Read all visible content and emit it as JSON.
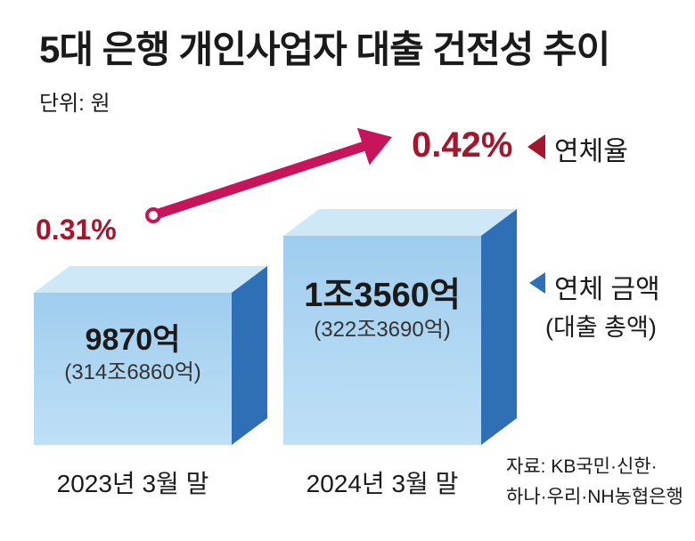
{
  "chart_data": {
    "type": "bar",
    "title": "5대 은행 개인사업자 대출 건전성 추이",
    "unit_label": "단위: 원",
    "categories": [
      "2023년 3월 말",
      "2024년 3월 말"
    ],
    "series": [
      {
        "name": "연체 금액",
        "values": [
          987000000000,
          1356000000000
        ],
        "labels": [
          "9870억",
          "1조3560억"
        ]
      },
      {
        "name": "대출 총액",
        "values": [
          314686000000000,
          322369000000000
        ],
        "labels": [
          "(314조6860억)",
          "(322조3690억)"
        ]
      },
      {
        "name": "연체율",
        "values": [
          0.31,
          0.42
        ],
        "labels": [
          "0.31%",
          "0.42%"
        ]
      }
    ],
    "legend": {
      "rate": "연체율",
      "amount": "연체 금액",
      "total": "(대출 총액)"
    },
    "source_line1": "자료: KB국민·신한·",
    "source_line2": "하나·우리·NH농협은행"
  },
  "colors": {
    "box_front": "#a8d4f0",
    "box_top": "#cfe8f8",
    "box_side": "#2f6fb5",
    "arrow": "#c8145a",
    "rate_text": "#a3162b",
    "legend_marker_rate": "#a3162b",
    "legend_marker_amount": "#2f6fb5"
  }
}
